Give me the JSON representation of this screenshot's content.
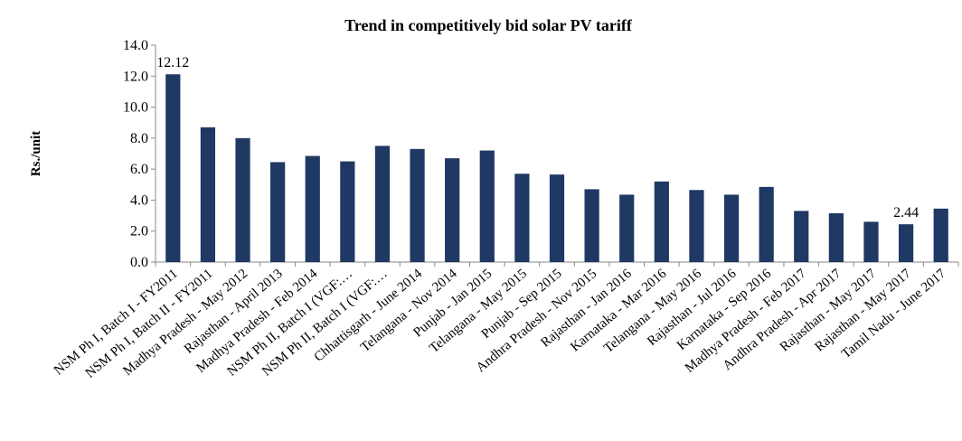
{
  "chart_data": {
    "type": "bar",
    "title": "Trend in competitively bid solar PV tariff",
    "y_label": "Rs./unit",
    "categories": [
      "NSM Ph I, Batch I - FY2011",
      "NSM Ph I, Batch II - FY2011",
      "Madhya Pradesh - May 2012",
      "Rajasthan - April 2013",
      "Madhya Pradesh - Feb 2014",
      "NSM Ph II, Batch I (VGF:…",
      "NSM Ph II, Batch I (VGF:…",
      "Chhattisgarh - June 2014",
      "Telangana - Nov 2014",
      "Punjab - Jan 2015",
      "Telangana - May 2015",
      "Punjab - Sep 2015",
      "Andhra Pradesh - Nov 2015",
      "Rajasthan - Jan 2016",
      "Karnataka - Mar 2016",
      "Telangana - May 2016",
      "Rajasthan - Jul 2016",
      "Karnataka - Sep 2016",
      "Madhya Pradesh - Feb 2017",
      "Andhra Pradesh - Apr 2017",
      "Rajasthan - May 2017",
      "Rajasthan - May 2017",
      "Tamil Nadu - June 2017"
    ],
    "values": [
      12.12,
      8.7,
      8.0,
      6.45,
      6.85,
      6.5,
      7.5,
      7.3,
      6.7,
      7.2,
      5.7,
      5.65,
      4.7,
      4.35,
      5.2,
      4.65,
      4.35,
      4.85,
      3.3,
      3.15,
      2.6,
      2.44,
      3.45
    ],
    "value_labels": [
      "12.12",
      null,
      null,
      null,
      null,
      null,
      null,
      null,
      null,
      null,
      null,
      null,
      null,
      null,
      null,
      null,
      null,
      null,
      null,
      null,
      null,
      "2.44",
      null
    ],
    "color": "#1f3864",
    "ylim": [
      0,
      14
    ],
    "yticks": [
      {
        "value": 0,
        "label": "0.0"
      },
      {
        "value": 2,
        "label": "2.0"
      },
      {
        "value": 4,
        "label": "4.0"
      },
      {
        "value": 6,
        "label": "6.0"
      },
      {
        "value": 8,
        "label": "8.0"
      },
      {
        "value": 10,
        "label": "10.0"
      },
      {
        "value": 12,
        "label": "12.0"
      },
      {
        "value": 14,
        "label": "14.0"
      }
    ],
    "grid": false
  }
}
